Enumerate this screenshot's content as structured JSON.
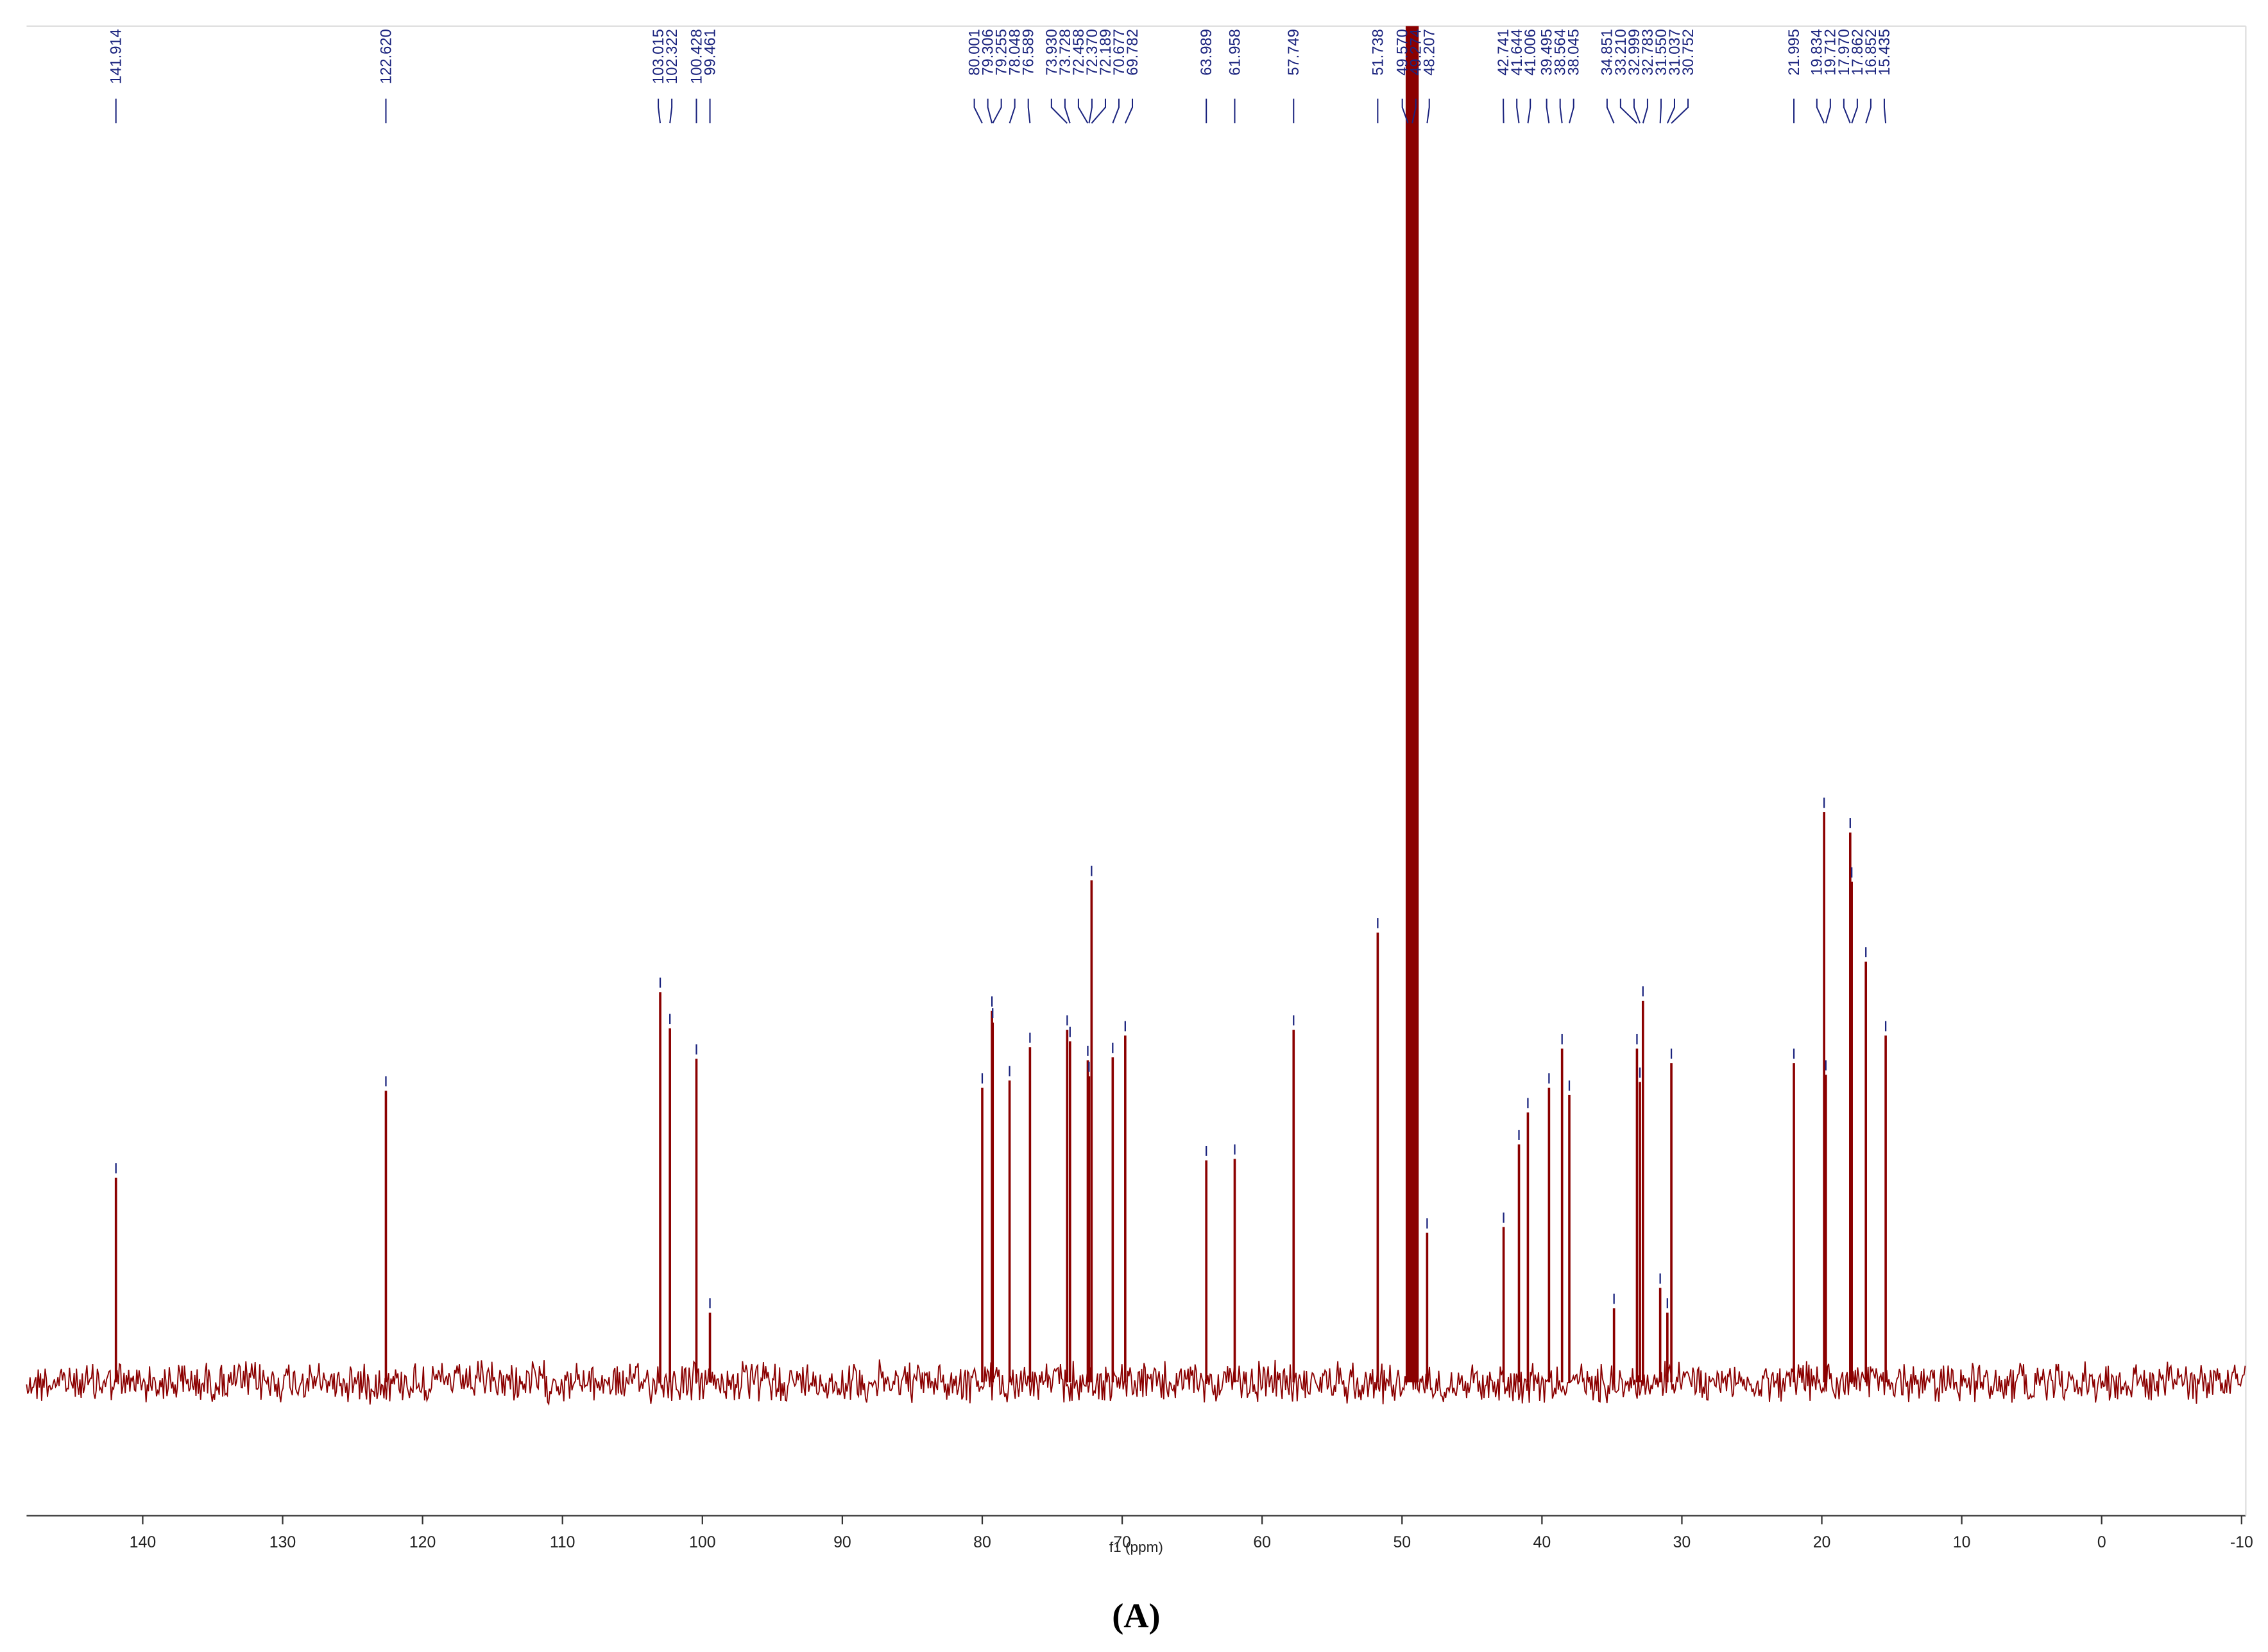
{
  "chart_data": {
    "type": "spectrum",
    "xlabel": "f1 (ppm)",
    "caption": "(A)",
    "x": [
      141.914,
      122.62,
      103.015,
      102.322,
      100.428,
      99.461,
      80.001,
      79.306,
      79.255,
      78.048,
      76.589,
      73.93,
      73.728,
      72.458,
      72.37,
      72.189,
      70.677,
      69.782,
      63.989,
      61.958,
      57.749,
      51.738,
      49.57,
      49.274,
      48.207,
      42.741,
      41.644,
      41.006,
      39.495,
      38.564,
      38.045,
      34.851,
      33.21,
      32.999,
      32.783,
      31.55,
      31.037,
      30.752,
      21.995,
      19.834,
      19.712,
      17.97,
      17.862,
      16.852,
      15.435
    ],
    "x_labels": [
      "141.914",
      "122.620",
      "103.015",
      "102.322",
      "100.428",
      "99.461",
      "80.001",
      "79.306",
      "79.255",
      "78.048",
      "76.589",
      "73.930",
      "73.728",
      "72.458",
      "72.370",
      "72.189",
      "70.677",
      "69.782",
      "63.989",
      "61.958",
      "57.749",
      "51.738",
      "49.570",
      "49.274",
      "48.207",
      "42.741",
      "41.644",
      "41.006",
      "39.495",
      "38.564",
      "38.045",
      "34.851",
      "33.210",
      "32.999",
      "32.783",
      "31.550",
      "31.037",
      "30.752",
      "21.995",
      "19.834",
      "19.712",
      "17.970",
      "17.862",
      "16.852",
      "15.435"
    ],
    "values": [
      141,
      201,
      269,
      244,
      223,
      48,
      203,
      256,
      248,
      208,
      231,
      243,
      235,
      222,
      211,
      346,
      224,
      239,
      153,
      154,
      243,
      310,
      65,
      935,
      103,
      107,
      164,
      186,
      203,
      230,
      198,
      51,
      230,
      207,
      263,
      65,
      48,
      220,
      220,
      393,
      212,
      379,
      345,
      290,
      239
    ],
    "color": "#8b0000",
    "label_color": "#1a237e",
    "xlim": [
      148.3,
      -10.3
    ],
    "ylim": [
      -90,
      935
    ],
    "xticks": [
      140,
      130,
      120,
      110,
      100,
      90,
      80,
      70,
      60,
      50,
      40,
      30,
      20,
      10,
      0,
      -10
    ]
  }
}
